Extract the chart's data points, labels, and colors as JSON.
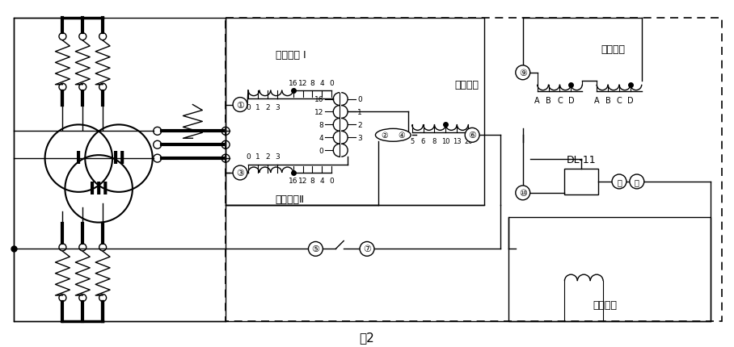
{
  "bg_color": "#ffffff",
  "line_color": "#000000",
  "labels": {
    "pinghen1": "平衡绕组 I",
    "pinghen2": "平衡绕组Ⅱ",
    "gongzuo": "工作绕组",
    "duanlu": "短路绕组",
    "erci": "二次绕组",
    "dl11": "DL-11",
    "tu2": "图2"
  }
}
